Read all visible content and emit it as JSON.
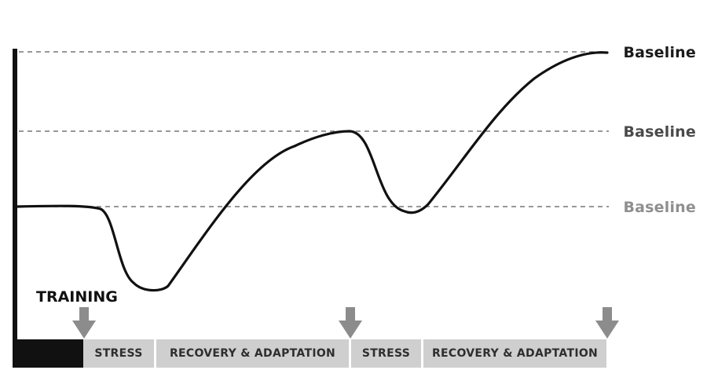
{
  "baselines": [
    "Baseline",
    "Baseline",
    "Baseline"
  ],
  "training_label": "TRAINING",
  "phases": [
    {
      "label": ""
    },
    {
      "label": "STRESS"
    },
    {
      "label": "RECOVERY & ADAPTATION"
    },
    {
      "label": "STRESS"
    },
    {
      "label": "RECOVERY & ADAPTATION"
    }
  ],
  "colors": {
    "curve": "#111111",
    "dashed_line": "#777777",
    "arrow": "#8c8c8c",
    "phase_fill": "#cfcfcf",
    "training_block": "#111111"
  }
}
